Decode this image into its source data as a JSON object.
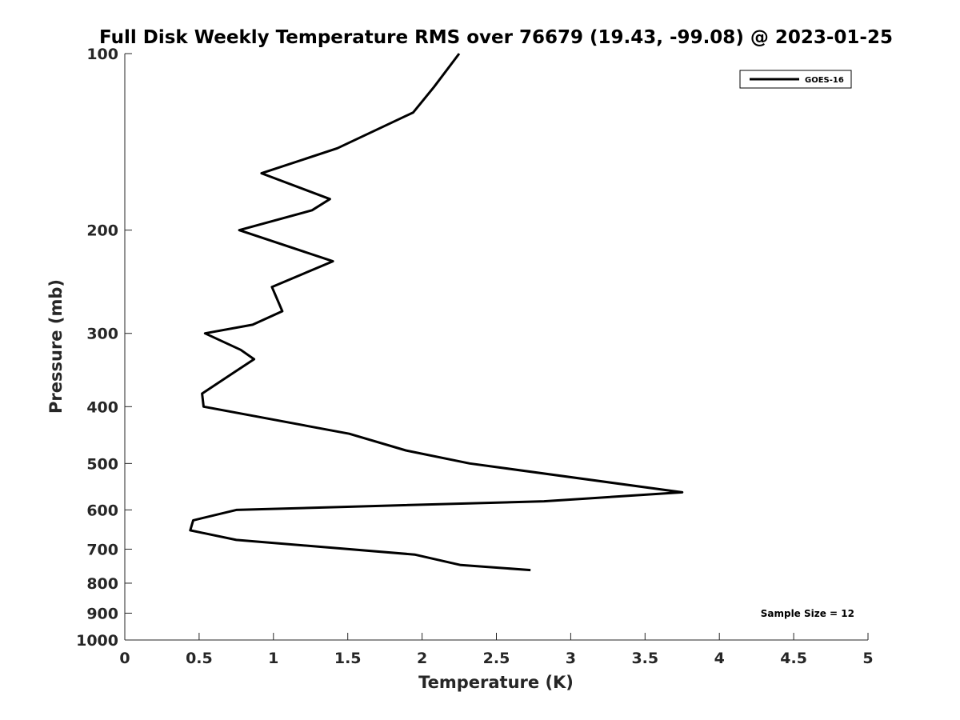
{
  "chart_data": {
    "type": "line",
    "title": "Full Disk Weekly Temperature RMS over 76679 (19.43, -99.08) @ 2023-01-25",
    "xlabel": "Temperature (K)",
    "ylabel": "Pressure (mb)",
    "xlim": [
      0,
      5
    ],
    "ylim": [
      100,
      1000
    ],
    "yscale": "log",
    "yreversed": true,
    "xticks": [
      0,
      0.5,
      1,
      1.5,
      2,
      2.5,
      3,
      3.5,
      4,
      4.5,
      5
    ],
    "xtick_labels": [
      "0",
      "0.5",
      "1",
      "1.5",
      "2",
      "2.5",
      "3",
      "3.5",
      "4",
      "4.5",
      "5"
    ],
    "yticks": [
      100,
      200,
      300,
      400,
      500,
      600,
      700,
      800,
      900,
      1000
    ],
    "ytick_labels": [
      "100",
      "200",
      "300",
      "400",
      "500",
      "600",
      "700",
      "800",
      "900",
      "1000"
    ],
    "grid": false,
    "legend_position": "top-right",
    "colors": {
      "line": "#000000",
      "axis": "#262626"
    },
    "series": [
      {
        "name": "GOES-16",
        "color": "#000000",
        "x": [
          2.25,
          2.08,
          1.94,
          1.43,
          0.92,
          1.38,
          1.26,
          0.77,
          1.4,
          0.99,
          1.06,
          0.86,
          0.54,
          0.78,
          0.87,
          0.74,
          0.52,
          0.53,
          1.51,
          1.89,
          2.32,
          3.75,
          2.82,
          0.75,
          0.46,
          0.44,
          0.75,
          1.95,
          2.26,
          2.73
        ],
        "y": [
          100,
          114,
          126,
          145,
          160,
          177,
          185,
          200,
          226,
          250,
          275,
          290,
          300,
          320,
          332,
          349,
          380,
          400,
          445,
          475,
          500,
          560,
          580,
          600,
          625,
          650,
          675,
          715,
          745,
          760
        ]
      }
    ],
    "annotations": [
      "Sample Size = 12"
    ]
  }
}
